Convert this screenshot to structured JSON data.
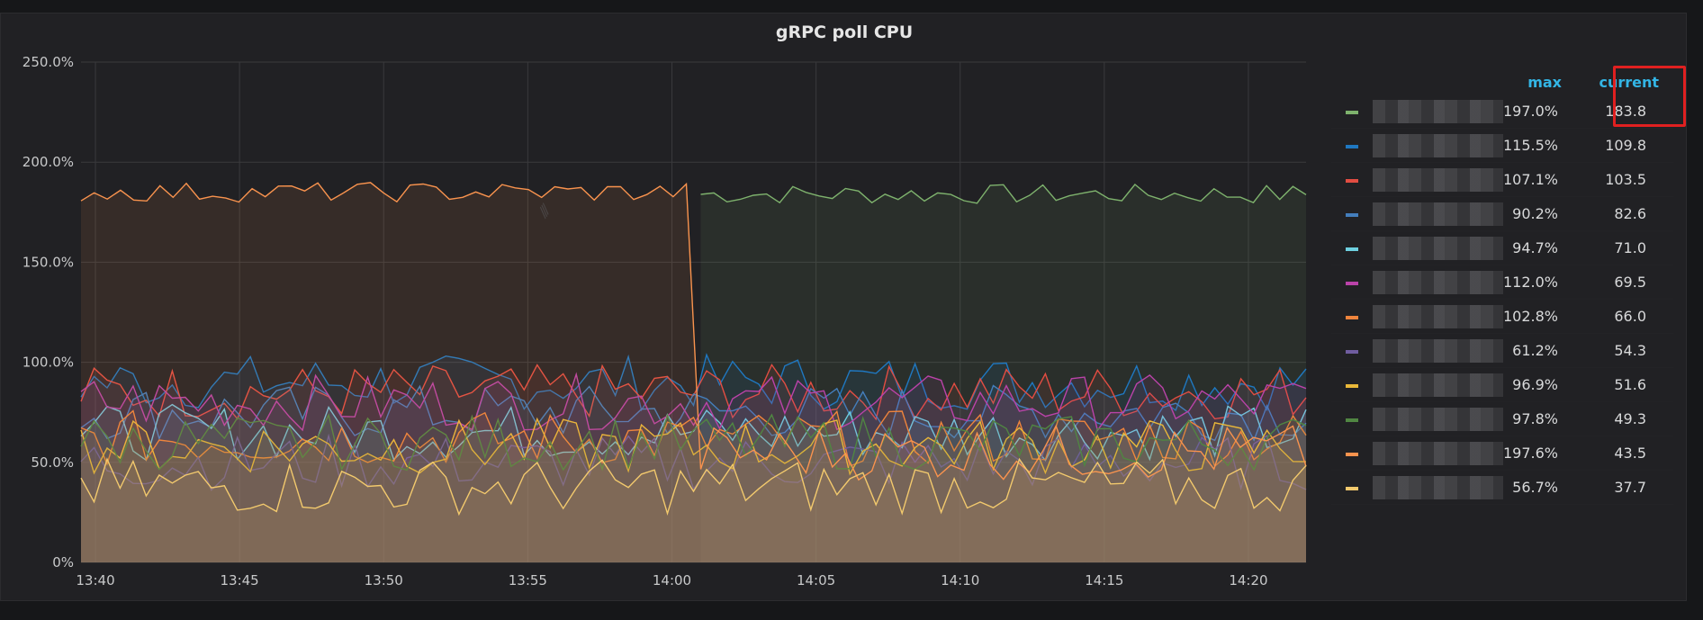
{
  "panel": {
    "title": "gRPC poll CPU"
  },
  "legend": {
    "max_label": "max",
    "current_label": "current"
  },
  "colors": {
    "background": "#212124",
    "grid": "#3a3a3d",
    "highlight": "#e02020",
    "legend_header": "#33b5e5"
  },
  "chart_data": {
    "type": "area",
    "title": "gRPC poll CPU",
    "xlabel": "",
    "ylabel": "",
    "ylim": [
      0,
      250
    ],
    "y_ticks": [
      "0%",
      "50.0%",
      "100.0%",
      "150.0%",
      "200.0%",
      "250.0%"
    ],
    "x_ticks": [
      "13:40",
      "13:45",
      "13:50",
      "13:55",
      "14:00",
      "14:05",
      "14:10",
      "14:15",
      "14:20"
    ],
    "x_range": [
      "13:39.5",
      "14:22"
    ],
    "grid": true,
    "legend_placement": "right",
    "series": [
      {
        "color": "#7eb26d",
        "max": "197.0%",
        "current": "183.8",
        "segments": [
          {
            "from": "14:01",
            "to": "14:22",
            "base": 184
          }
        ]
      },
      {
        "color": "#1f78c1",
        "max": "115.5%",
        "current": "109.8",
        "base": 90
      },
      {
        "color": "#e24d42",
        "max": "107.1%",
        "current": "103.5",
        "base": 85
      },
      {
        "color": "#447ebc",
        "max": "90.2%",
        "current": "82.6",
        "base": 75
      },
      {
        "color": "#6ed0e0",
        "max": "94.7%",
        "current": "71.0",
        "base": 65
      },
      {
        "color": "#ba43a9",
        "max": "112.0%",
        "current": "69.5",
        "base": 80
      },
      {
        "color": "#ef843c",
        "max": "102.8%",
        "current": "66.0",
        "base": 62
      },
      {
        "color": "#705da0",
        "max": "61.2%",
        "current": "54.3",
        "base": 50
      },
      {
        "color": "#eab839",
        "max": "96.9%",
        "current": "51.6",
        "base": 58
      },
      {
        "color": "#508642",
        "max": "97.8%",
        "current": "49.3",
        "base": 60
      },
      {
        "color": "#f9934e",
        "max": "197.6%",
        "current": "43.5",
        "segments": [
          {
            "from": "13:39.5",
            "to": "14:00.5",
            "base": 185
          },
          {
            "from": "14:01",
            "to": "14:22",
            "base": 55
          }
        ]
      },
      {
        "color": "#f2c96d",
        "max": "56.7%",
        "current": "37.7",
        "base": 38
      }
    ]
  }
}
